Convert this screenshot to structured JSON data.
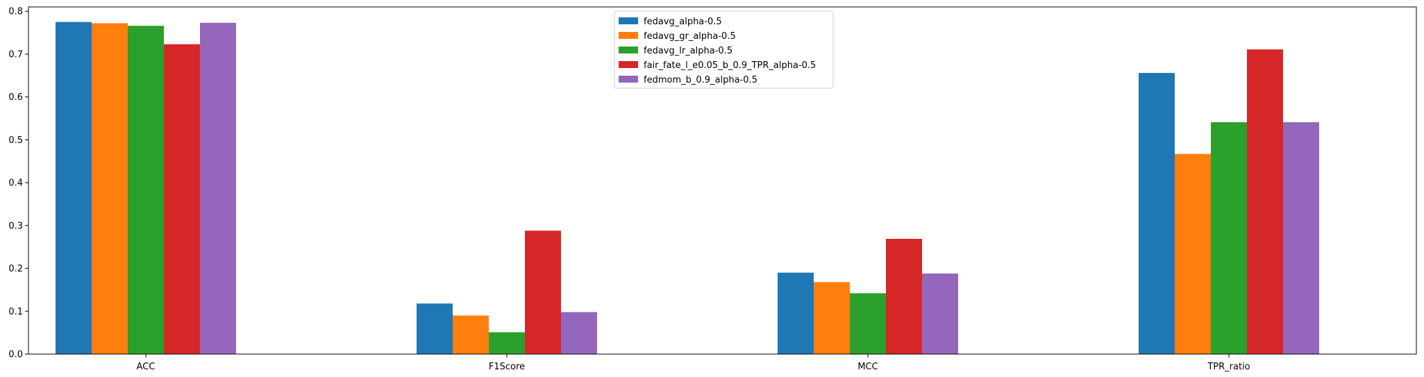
{
  "chart_data": {
    "type": "bar",
    "categories": [
      "ACC",
      "F1Score",
      "MCC",
      "TPR_ratio"
    ],
    "series": [
      {
        "name": "fedavg_alpha-0.5",
        "color": "#1f77b4",
        "values": [
          0.775,
          0.118,
          0.19,
          0.656
        ]
      },
      {
        "name": "fedavg_gr_alpha-0.5",
        "color": "#ff7f0e",
        "values": [
          0.772,
          0.09,
          0.168,
          0.467
        ]
      },
      {
        "name": "fedavg_lr_alpha-0.5",
        "color": "#2ca02c",
        "values": [
          0.766,
          0.051,
          0.142,
          0.541
        ]
      },
      {
        "name": "fair_fate_l_e0.05_b_0.9_TPR_alpha-0.5",
        "color": "#d62728",
        "values": [
          0.723,
          0.288,
          0.269,
          0.711
        ]
      },
      {
        "name": "fedmom_b_0.9_alpha-0.5",
        "color": "#9467bd",
        "values": [
          0.773,
          0.098,
          0.188,
          0.541
        ]
      }
    ],
    "ylim": [
      0,
      0.81
    ],
    "yticks": [
      "0.0",
      "0.1",
      "0.2",
      "0.3",
      "0.4",
      "0.5",
      "0.6",
      "0.7",
      "0.8"
    ],
    "ytick_values": [
      0,
      0.1,
      0.2,
      0.3,
      0.4,
      0.5,
      0.6,
      0.7,
      0.8
    ],
    "title": "",
    "xlabel": "",
    "ylabel": "",
    "legend_position": "top-center",
    "grid": false
  }
}
